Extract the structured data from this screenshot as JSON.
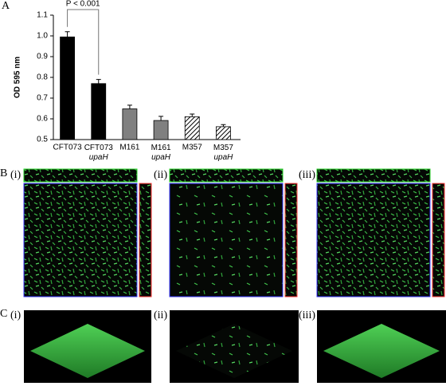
{
  "chart_data": {
    "type": "bar",
    "ylabel": "OD 595 nm",
    "categories": [
      "CFT073",
      "CFT073 upaH",
      "M161",
      "M161 upaH",
      "M357",
      "M357 upaH"
    ],
    "values": [
      0.995,
      0.77,
      0.648,
      0.592,
      0.61,
      0.562
    ],
    "errors": [
      0.025,
      0.02,
      0.018,
      0.02,
      0.013,
      0.01
    ],
    "colors": [
      "#000000",
      "#000000",
      "#808080",
      "#808080",
      "#ffffff",
      "#ffffff"
    ],
    "hatched": [
      false,
      false,
      false,
      false,
      true,
      true
    ],
    "ylim": [
      0.5,
      1.1
    ],
    "yticks": [
      0.5,
      0.6,
      0.7,
      0.8,
      0.9,
      {
        "value": 1,
        "label": "1.0"
      },
      1.1
    ],
    "annotation": "P < 0.001"
  },
  "panels": {
    "A": {
      "label": "A"
    },
    "B": {
      "label": "B",
      "images": [
        "(i)",
        "(ii)",
        "(iii)"
      ]
    },
    "C": {
      "label": "C",
      "images": [
        "(i)",
        "(ii)",
        "(iii)"
      ]
    }
  }
}
